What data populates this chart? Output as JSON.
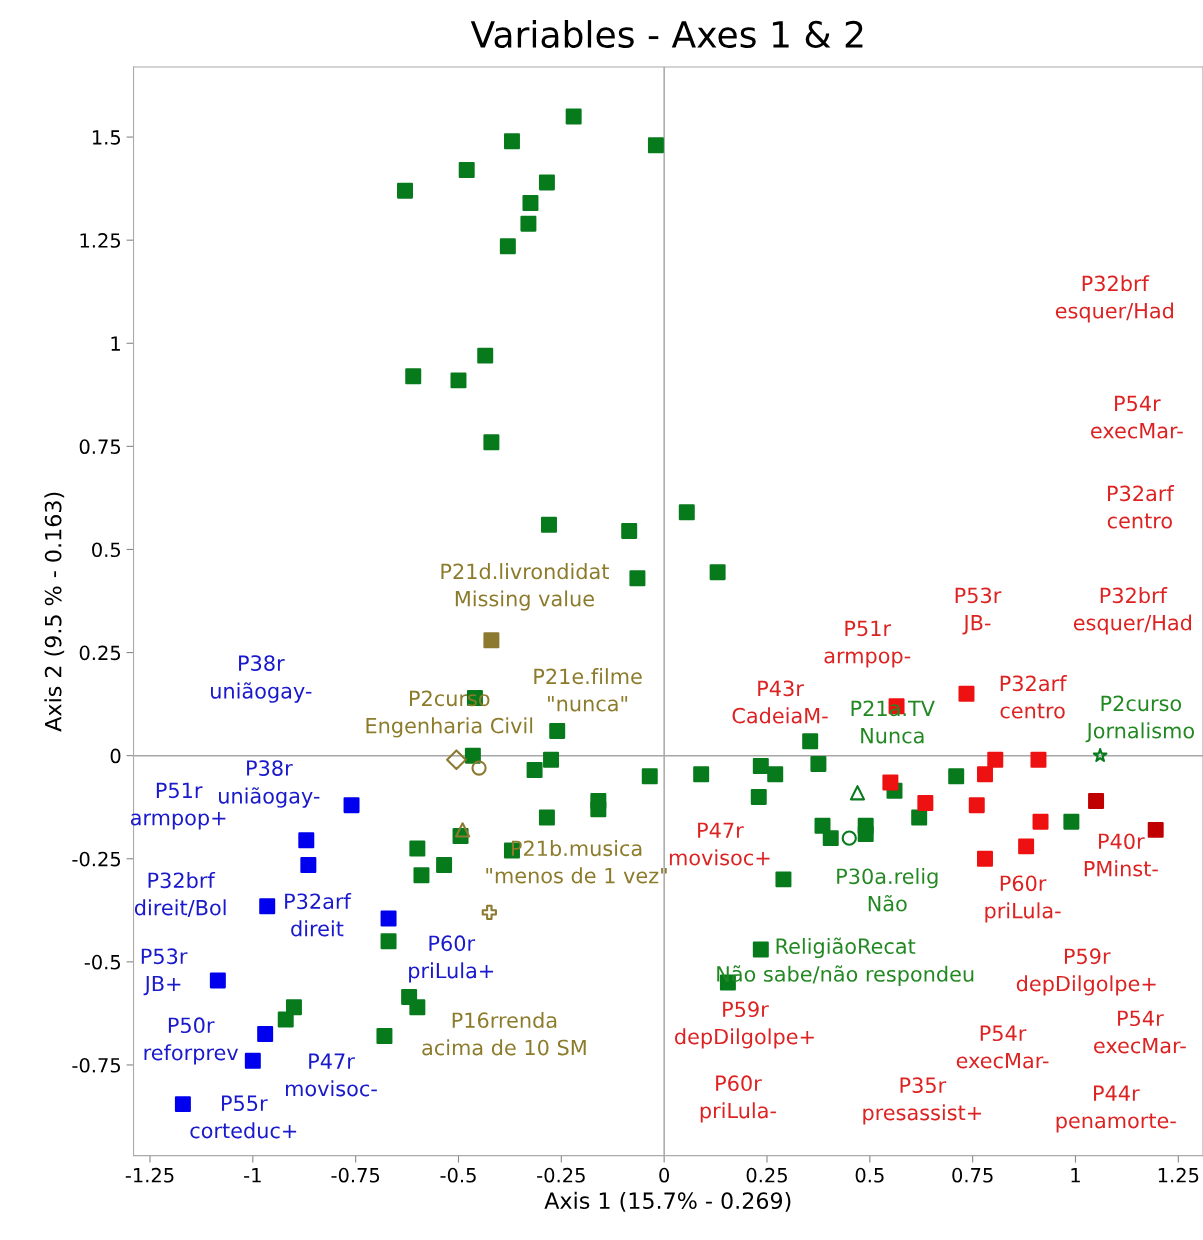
{
  "chart_data": {
    "type": "scatter",
    "title": "Variables - Axes 1 & 2",
    "xlabel": "Axis 1 (15.7% - 0.269)",
    "ylabel": "Axis 2 (9.5 % - 0.163)",
    "xlim": [
      -1.29,
      1.31
    ],
    "ylim": [
      -0.97,
      1.67
    ],
    "xticks": [
      -1.25,
      -1,
      -0.75,
      -0.5,
      -0.25,
      0,
      0.25,
      0.5,
      0.75,
      1,
      1.25
    ],
    "yticks": [
      -0.75,
      -0.5,
      -0.25,
      0,
      0.25,
      0.5,
      0.75,
      1,
      1.25,
      1.5
    ],
    "grid": false,
    "legend": false,
    "ref_lines": [
      {
        "axis": "x",
        "value": 0
      },
      {
        "axis": "y",
        "value": 0
      }
    ],
    "series": [
      {
        "color": "#077a1c",
        "marker": "square",
        "x": [
          -0.22,
          -0.37,
          -0.02,
          -0.48,
          -0.63,
          -0.285,
          -0.325,
          -0.33,
          -0.38,
          -0.435,
          -0.61,
          -0.5,
          -0.42,
          -0.28,
          -0.085,
          -0.065,
          0.055,
          0.13,
          0.355,
          -0.46,
          -0.26,
          -0.465,
          -0.275,
          -0.315,
          -0.035,
          -0.16,
          -0.16,
          -0.285,
          -0.495,
          -0.37,
          -0.6,
          -0.535,
          -0.59,
          -0.67,
          -0.9,
          -0.92,
          -0.62,
          -0.6,
          -0.68,
          0.09,
          0.235,
          0.27,
          0.375,
          0.23,
          0.56,
          0.71,
          0.62,
          0.385,
          0.405,
          0.49,
          0.99,
          0.29,
          0.235,
          0.155
        ],
        "values": [
          1.55,
          1.49,
          1.48,
          1.42,
          1.37,
          1.39,
          1.34,
          1.29,
          1.235,
          0.97,
          0.92,
          0.91,
          0.76,
          0.56,
          0.545,
          0.43,
          0.59,
          0.445,
          0.035,
          0.14,
          0.06,
          0.0,
          -0.01,
          -0.035,
          -0.05,
          -0.11,
          -0.13,
          -0.15,
          -0.195,
          -0.23,
          -0.225,
          -0.265,
          -0.29,
          -0.45,
          -0.61,
          -0.64,
          -0.585,
          -0.61,
          -0.68,
          -0.045,
          -0.025,
          -0.045,
          -0.02,
          -0.1,
          -0.085,
          -0.05,
          -0.15,
          -0.17,
          -0.2,
          -0.17,
          -0.16,
          -0.3,
          -0.47,
          -0.55
        ]
      },
      {
        "color": "#0000ee",
        "marker": "square",
        "x": [
          -0.76,
          -0.87,
          -0.865,
          -0.965,
          -0.67,
          -1.085,
          -0.97,
          -1.0,
          -1.17
        ],
        "values": [
          -0.12,
          -0.205,
          -0.265,
          -0.365,
          -0.395,
          -0.545,
          -0.675,
          -0.74,
          -0.845
        ]
      },
      {
        "color": "#ee1111",
        "marker": "square",
        "x": [
          0.55,
          0.635,
          0.78,
          0.805,
          0.76,
          0.78,
          0.88,
          0.91,
          0.915,
          0.735,
          0.565
        ],
        "values": [
          -0.065,
          -0.115,
          -0.045,
          -0.01,
          -0.12,
          -0.25,
          -0.22,
          -0.01,
          -0.16,
          0.15,
          0.12
        ]
      },
      {
        "color": "#c00000",
        "marker": "square",
        "x": [
          1.05,
          1.195
        ],
        "values": [
          -0.11,
          -0.18
        ]
      },
      {
        "color": "#8c7a30",
        "marker": "square",
        "x": [
          -0.42
        ],
        "values": [
          0.28
        ]
      },
      {
        "color": "#8c7a30",
        "marker": "diamond",
        "x": [
          -0.505
        ],
        "values": [
          -0.01
        ]
      },
      {
        "color": "#8c7a30",
        "marker": "circle",
        "x": [
          -0.45
        ],
        "values": [
          -0.03
        ]
      },
      {
        "color": "#8c7a30",
        "marker": "triangle",
        "x": [
          -0.49
        ],
        "values": [
          -0.18
        ]
      },
      {
        "color": "#8c7a30",
        "marker": "cross",
        "x": [
          -0.425
        ],
        "values": [
          -0.38
        ]
      },
      {
        "color": "#077a1c",
        "marker": "triangle",
        "x": [
          0.47
        ],
        "values": [
          -0.09
        ]
      },
      {
        "color": "#077a1c",
        "marker": "circle",
        "x": [
          0.45
        ],
        "values": [
          -0.2
        ]
      },
      {
        "color": "#077a1c",
        "marker": "square",
        "x": [
          0.49
        ],
        "values": [
          -0.19
        ]
      },
      {
        "color": "#077a1c",
        "marker": "star",
        "x": [
          1.06
        ],
        "values": [
          0.0
        ]
      }
    ],
    "annotations": [
      "P38r\nuniãogay-",
      "P38r\nuniãogay-",
      "P51r\narmpop+",
      "P32brf\ndireit/Bol",
      "P32arf\ndireit",
      "P53r\nJB+",
      "P50r\nreforprev",
      "P55r\ncorteduc+",
      "P47r\nmovisoc-",
      "P60r\npriLula+",
      "P21d.livrondidat\nMissing value",
      "P21e.filme\n\"nunca\"",
      "P2curso\nEngenharia Civil",
      "P21b.musica\n\"menos de 1 vez\"",
      "P16rrenda\nacima de 10 SM",
      "P21a.TV\nNunca",
      "P2curso\nJornalismo",
      "P30a.relig\nNão",
      "ReligiãoRecat\nNão sabe/não respondeu",
      "P32brf\nesquer/Had",
      "P54r\nexecMar-",
      "P32arf\ncentro",
      "P53r\nJB-",
      "P32brf\nesquer/Had",
      "P51r\narmpop-",
      "P43r\nCadeiaM-",
      "P32arf\ncentro",
      "P47r\nmovisoc+",
      "P40r\nPMinst-",
      "P60r\npriLula-",
      "P59r\ndepDilgolpe+",
      "P59r\ndepDilgolpe+",
      "P54r\nexecMar-",
      "P54r\nexecMar-",
      "P60r\npriLula-",
      "P35r\npresassist+",
      "P44r\npenamorte-"
    ]
  }
}
